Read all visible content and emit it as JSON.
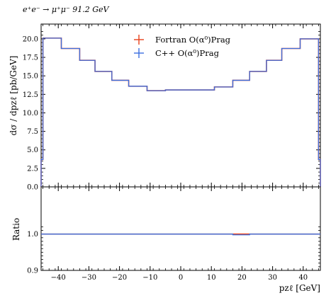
{
  "chart_data": {
    "type": "line",
    "title": "e⁺e⁻ → μ⁺μ⁻ 91.2 GeV",
    "xlabel": "pzℓ [GeV]",
    "upper": {
      "ylabel": "dσ / dpzℓ [pb/GeV]",
      "ylim": [
        0,
        22.0
      ],
      "yticks": [
        "0.0",
        "2.5",
        "5.0",
        "7.5",
        "10.0",
        "12.5",
        "15.0",
        "17.5",
        "20.0"
      ],
      "ytick_values": [
        0,
        2.5,
        5,
        7.5,
        10,
        12.5,
        15,
        17.5,
        20
      ]
    },
    "lower": {
      "ylabel": "Ratio",
      "ylim": [
        0.9,
        1.13
      ],
      "yticks": [
        "0.9",
        "1.0"
      ],
      "ytick_values": [
        0.9,
        1.0
      ]
    },
    "xlim": [
      -45.6,
      45.6
    ],
    "xticks": [
      "−40",
      "−30",
      "−20",
      "−10",
      "0",
      "10",
      "20",
      "30",
      "40"
    ],
    "xtick_values": [
      -40,
      -30,
      -20,
      -10,
      0,
      10,
      20,
      30,
      40
    ],
    "bin_edges": [
      -45.6,
      -45.0,
      -39.0,
      -33.0,
      -28.0,
      -22.5,
      -17.0,
      -11.0,
      -5.0,
      0,
      5.0,
      11.0,
      17.0,
      22.5,
      28.0,
      33.0,
      39.0,
      45.0,
      45.6
    ],
    "series": [
      {
        "name": "Fortran O(α⁰)Prag",
        "color": "#e8401a",
        "values": [
          3.7,
          20.1,
          18.7,
          17.1,
          15.6,
          14.4,
          13.6,
          13.0,
          13.1,
          13.1,
          13.1,
          13.5,
          14.4,
          15.6,
          17.1,
          18.7,
          20.0,
          3.7
        ],
        "ratio": [
          1.0,
          1.0,
          1.0,
          1.0,
          1.0,
          1.0,
          1.0,
          1.0,
          1.0,
          1.0,
          1.0,
          1.0,
          1.0,
          1.0,
          1.0,
          1.0,
          1.0,
          1.0
        ]
      },
      {
        "name": "C++ O(α⁰)Prag",
        "color": "#3a6fe0",
        "values": [
          3.7,
          20.1,
          18.7,
          17.1,
          15.6,
          14.4,
          13.6,
          13.0,
          13.1,
          13.1,
          13.1,
          13.5,
          14.4,
          15.6,
          17.1,
          18.7,
          20.0,
          3.7
        ],
        "ratio": [
          1.0,
          1.0,
          1.0,
          1.0,
          1.0,
          1.0,
          1.0,
          1.0,
          1.0,
          1.0,
          1.0,
          1.0,
          0.998,
          1.0,
          1.0,
          1.0,
          1.0,
          1.0
        ]
      }
    ],
    "legend_placement": "top-center",
    "grid": false
  }
}
